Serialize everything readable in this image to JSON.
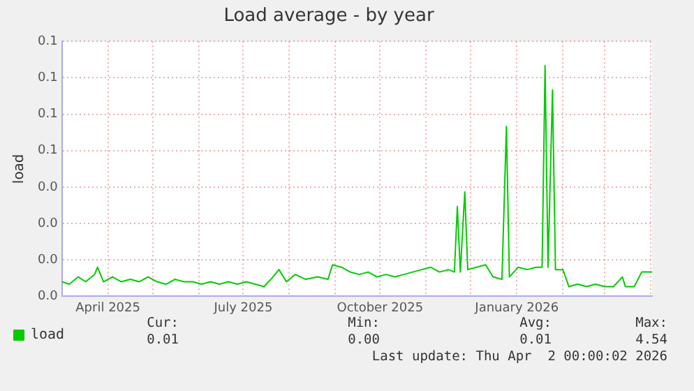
{
  "chart_data": {
    "type": "line",
    "title": "Load average - by year",
    "ylabel": "load",
    "x": [
      "2025-03-01",
      "2025-03-06",
      "2025-03-12",
      "2025-03-17",
      "2025-03-23",
      "2025-03-25",
      "2025-03-29",
      "2025-04-04",
      "2025-04-10",
      "2025-04-16",
      "2025-04-22",
      "2025-04-28",
      "2025-05-04",
      "2025-05-10",
      "2025-05-16",
      "2025-05-22",
      "2025-05-28",
      "2025-06-03",
      "2025-06-09",
      "2025-06-15",
      "2025-06-21",
      "2025-06-27",
      "2025-07-03",
      "2025-07-09",
      "2025-07-15",
      "2025-07-21",
      "2025-07-25",
      "2025-07-30",
      "2025-08-05",
      "2025-08-12",
      "2025-08-20",
      "2025-08-27",
      "2025-08-30",
      "2025-09-05",
      "2025-09-11",
      "2025-09-17",
      "2025-09-23",
      "2025-09-29",
      "2025-10-05",
      "2025-10-11",
      "2025-10-17",
      "2025-10-23",
      "2025-10-29",
      "2025-11-04",
      "2025-11-10",
      "2025-11-16",
      "2025-11-20",
      "2025-11-22",
      "2025-11-24",
      "2025-11-27",
      "2025-11-29",
      "2025-12-05",
      "2025-12-11",
      "2025-12-16",
      "2025-12-22",
      "2025-12-25",
      "2025-12-27",
      "2026-01-02",
      "2026-01-08",
      "2026-01-14",
      "2026-01-18",
      "2026-01-20",
      "2026-01-22",
      "2026-01-25",
      "2026-01-27",
      "2026-02-01",
      "2026-02-05",
      "2026-02-11",
      "2026-02-17",
      "2026-02-23",
      "2026-03-01",
      "2026-03-07",
      "2026-03-13",
      "2026-03-15",
      "2026-03-21",
      "2026-03-26",
      "2026-04-02"
    ],
    "series": [
      {
        "name": "load",
        "color": "#00cc00",
        "values": [
          0.006,
          0.005,
          0.008,
          0.006,
          0.009,
          0.012,
          0.006,
          0.008,
          0.006,
          0.007,
          0.006,
          0.008,
          0.006,
          0.005,
          0.007,
          0.006,
          0.006,
          0.005,
          0.006,
          0.005,
          0.006,
          0.005,
          0.006,
          0.005,
          0.004,
          0.008,
          0.011,
          0.006,
          0.009,
          0.007,
          0.008,
          0.007,
          0.013,
          0.012,
          0.01,
          0.009,
          0.01,
          0.008,
          0.009,
          0.008,
          0.009,
          0.01,
          0.011,
          0.012,
          0.01,
          0.011,
          0.01,
          0.037,
          0.01,
          0.043,
          0.011,
          0.012,
          0.013,
          0.008,
          0.007,
          0.07,
          0.008,
          0.012,
          0.011,
          0.012,
          0.012,
          0.095,
          0.012,
          0.085,
          0.011,
          0.011,
          0.004,
          0.005,
          0.004,
          0.005,
          0.004,
          0.004,
          0.008,
          0.004,
          0.004,
          0.01,
          0.01
        ]
      }
    ],
    "xlim": [
      "2025-03-01",
      "2026-04-02"
    ],
    "xticks": [
      {
        "value": "2025-03-01",
        "label": null
      },
      {
        "value": "2025-04-01",
        "label": "April 2025"
      },
      {
        "value": "2025-05-01",
        "label": null
      },
      {
        "value": "2025-06-01",
        "label": null
      },
      {
        "value": "2025-07-01",
        "label": "July 2025"
      },
      {
        "value": "2025-08-01",
        "label": null
      },
      {
        "value": "2025-09-01",
        "label": null
      },
      {
        "value": "2025-10-01",
        "label": "October 2025"
      },
      {
        "value": "2025-11-01",
        "label": null
      },
      {
        "value": "2025-12-01",
        "label": null
      },
      {
        "value": "2026-01-01",
        "label": "January 2026"
      },
      {
        "value": "2026-02-01",
        "label": null
      },
      {
        "value": "2026-03-01",
        "label": null
      },
      {
        "value": "2026-04-01",
        "label": null
      }
    ],
    "ylim": [
      0,
      0.105
    ],
    "yticks": [
      {
        "value": 0,
        "label": "0.0"
      },
      {
        "value": 0.015,
        "label": "0.0"
      },
      {
        "value": 0.03,
        "label": "0.0"
      },
      {
        "value": 0.045,
        "label": "0.0"
      },
      {
        "value": 0.06,
        "label": "0.1"
      },
      {
        "value": 0.075,
        "label": "0.1"
      },
      {
        "value": 0.09,
        "label": "0.1"
      },
      {
        "value": 0.105,
        "label": "0.1"
      }
    ],
    "grid": true,
    "legend": "bottom left",
    "marker": "none",
    "line_style": "solid",
    "annotations": [
      "Cur:",
      "0.01",
      "Min:",
      "0.00",
      "Avg:",
      "0.01",
      "Max:",
      "4.54",
      "Last update: Thu Apr  2 00:00:02 2026"
    ]
  }
}
